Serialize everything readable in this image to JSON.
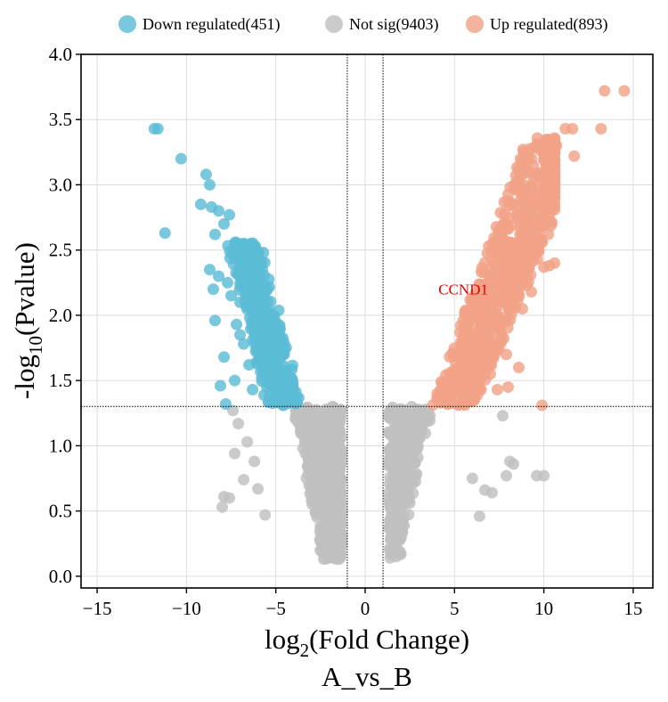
{
  "chart_data": {
    "type": "scatter",
    "title": "",
    "subtitle": "A_vs_B",
    "xlabel": {
      "base": "log",
      "sub": "2",
      "rest": "(Fold Change)"
    },
    "ylabel": {
      "base": "-log",
      "sub": "10",
      "rest": "(Pvalue)"
    },
    "xlim": [
      -15.9,
      16.1
    ],
    "ylim": [
      -0.09,
      4.0
    ],
    "xticks": [
      -15,
      -10,
      -5,
      0,
      5,
      10,
      15
    ],
    "xtick_labels": [
      "−15",
      "−10",
      "−5",
      "0",
      "5",
      "10",
      "15"
    ],
    "yticks": [
      0,
      0.5,
      1,
      1.5,
      2,
      2.5,
      3,
      3.5,
      4
    ],
    "ytick_labels": [
      "0.0",
      "0.5",
      "1.0",
      "1.5",
      "2.0",
      "2.5",
      "3.0",
      "3.5",
      "4.0"
    ],
    "grid": true,
    "fc_threshold_lines": [
      -1,
      1
    ],
    "pvalue_threshold_line": 1.301,
    "legend_position": "top",
    "legend": [
      {
        "label": "Down regulated(451)",
        "color": "#5bbcd6"
      },
      {
        "label": "Not sig(9403)",
        "color": "#bfbfbf"
      },
      {
        "label": "Up regulated(893)",
        "color": "#f2a287"
      }
    ],
    "series": [
      {
        "name": "Down regulated(451)",
        "count": 451,
        "points": [
          [
            -11.8,
            3.43
          ],
          [
            -11.6,
            3.43
          ],
          [
            -10.3,
            3.2
          ],
          [
            -11.2,
            2.63
          ],
          [
            -8.9,
            3.08
          ],
          [
            -8.7,
            3.0
          ],
          [
            -9.2,
            2.85
          ],
          [
            -8.6,
            2.83
          ],
          [
            -8.2,
            2.8
          ],
          [
            -7.6,
            2.77
          ],
          [
            -7.9,
            2.7
          ],
          [
            -8.4,
            2.62
          ],
          [
            -8.7,
            2.35
          ],
          [
            -8.5,
            2.2
          ],
          [
            -8.4,
            1.96
          ],
          [
            -8.2,
            2.3
          ],
          [
            -7.7,
            2.25
          ],
          [
            -7.5,
            2.15
          ],
          [
            -7.2,
            1.93
          ],
          [
            -7.0,
            1.85
          ],
          [
            -7.9,
            1.68
          ],
          [
            -8.1,
            1.46
          ],
          [
            -7.8,
            1.32
          ],
          [
            -7.3,
            1.5
          ],
          [
            -6.8,
            1.78
          ],
          [
            -6.5,
            1.62
          ],
          [
            -6.3,
            1.43
          ],
          [
            -6.9,
            2.45
          ],
          [
            -7.0,
            2.1
          ],
          [
            -6.7,
            2.35
          ],
          [
            -6.4,
            2.55
          ],
          [
            -6.2,
            2.1
          ]
        ],
        "envelope": {
          "x_edge": [
            -7.6,
            -3.3
          ],
          "y_range": [
            1.32,
            2.75
          ]
        }
      },
      {
        "name": "Not sig(9403)",
        "count": 9403,
        "points": [
          [
            -7.9,
            0.61
          ],
          [
            -8.0,
            0.53
          ],
          [
            -7.6,
            0.6
          ],
          [
            -6.8,
            0.74
          ],
          [
            -7.3,
            0.94
          ],
          [
            -7.1,
            1.17
          ],
          [
            -6.6,
            1.03
          ],
          [
            -6.2,
            0.88
          ],
          [
            -7.4,
            1.27
          ],
          [
            -6.0,
            0.67
          ],
          [
            -5.6,
            0.47
          ],
          [
            7.7,
            1.23
          ],
          [
            8.1,
            0.88
          ],
          [
            8.3,
            0.86
          ],
          [
            7.9,
            0.77
          ],
          [
            9.6,
            0.77
          ],
          [
            10.0,
            0.77
          ],
          [
            7.1,
            0.64
          ],
          [
            6.7,
            0.66
          ],
          [
            6.0,
            0.75
          ],
          [
            6.4,
            0.46
          ]
        ],
        "envelope": {
          "x_edge": [
            -3.3,
            -1.0,
            1.1,
            3.6
          ],
          "y_range": [
            0.12,
            1.3
          ]
        }
      },
      {
        "name": "Up regulated(893)",
        "count": 893,
        "points": [
          [
            13.4,
            3.72
          ],
          [
            14.5,
            3.72
          ],
          [
            11.2,
            3.43
          ],
          [
            11.6,
            3.43
          ],
          [
            13.2,
            3.43
          ],
          [
            10.7,
            3.3
          ],
          [
            11.7,
            3.22
          ],
          [
            10.4,
            3.26
          ],
          [
            8.6,
            3.1
          ],
          [
            8.9,
            2.75
          ],
          [
            10.0,
            2.78
          ],
          [
            9.6,
            2.55
          ],
          [
            8.8,
            2.45
          ],
          [
            10.6,
            2.4
          ],
          [
            10.3,
            2.38
          ],
          [
            10.0,
            2.37
          ],
          [
            9.3,
            2.18
          ],
          [
            8.8,
            2.05
          ],
          [
            7.9,
            1.7
          ],
          [
            8.6,
            1.6
          ],
          [
            7.4,
            1.43
          ],
          [
            8.0,
            1.45
          ],
          [
            9.9,
            1.31
          ],
          [
            7.5,
            1.92
          ],
          [
            6.8,
            1.75
          ],
          [
            7.0,
            1.55
          ]
        ],
        "envelope": {
          "x_edge": [
            3.6,
            10.4
          ],
          "y_range": [
            1.3,
            3.35
          ]
        }
      }
    ],
    "annotations": [
      {
        "text": "CCND1",
        "x": 4.1,
        "y": 2.2,
        "color": "#e60000"
      }
    ]
  }
}
